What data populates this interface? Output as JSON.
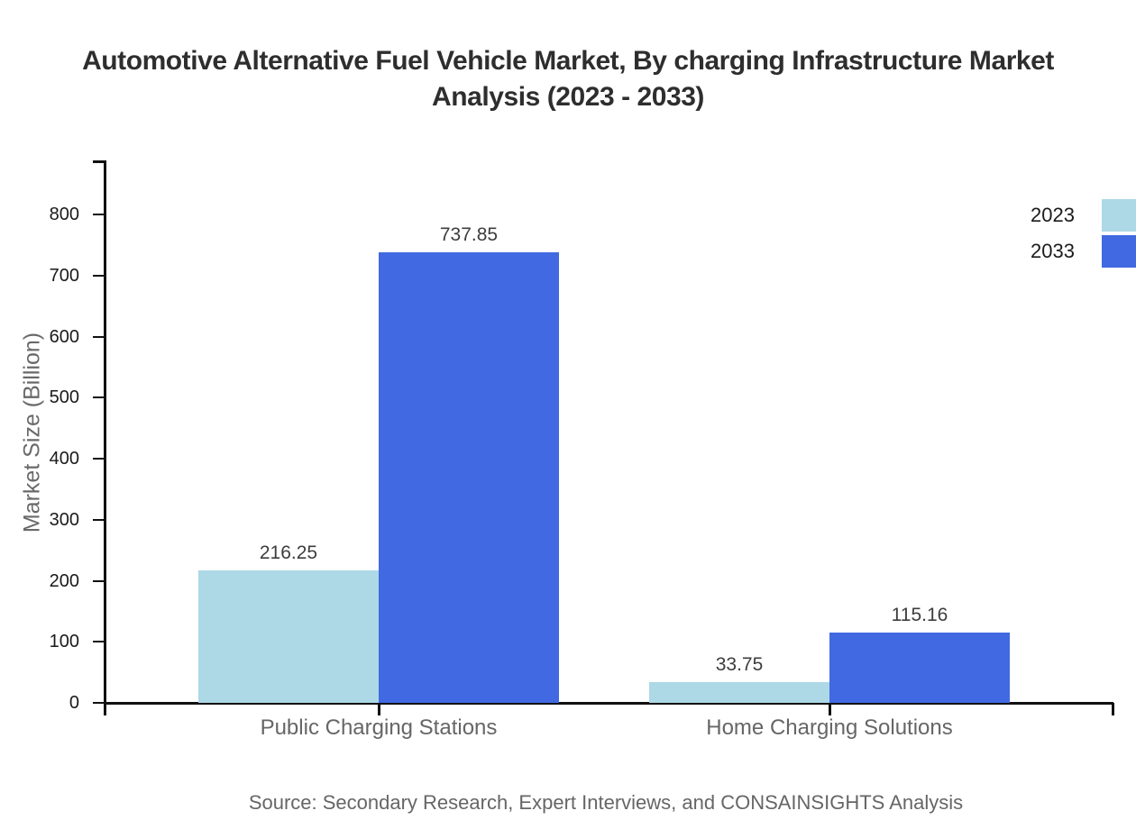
{
  "chart_data": {
    "type": "bar",
    "title": "Automotive Alternative Fuel Vehicle Market, By charging Infrastructure Market Analysis (2023 - 2033)",
    "xlabel": "",
    "ylabel": "Market Size (Billion)",
    "categories": [
      "Public Charging Stations",
      "Home Charging Solutions"
    ],
    "series": [
      {
        "name": "2023",
        "color": "#add8e6",
        "values": [
          216.25,
          33.75
        ]
      },
      {
        "name": "2033",
        "color": "#4169e1",
        "values": [
          737.85,
          115.16
        ]
      }
    ],
    "yticks": [
      0,
      100,
      200,
      300,
      400,
      500,
      600,
      700,
      800
    ],
    "ylim": [
      0,
      889
    ],
    "grid": false,
    "legend_position": "top-right",
    "value_labels_shown": true,
    "axis_color": "#111111",
    "tick_label_color": "#1a1a1a",
    "category_label_color": "#666666"
  },
  "footer": {
    "source": "Source: Secondary Research, Expert Interviews, and CONSAINSIGHTS Analysis"
  }
}
